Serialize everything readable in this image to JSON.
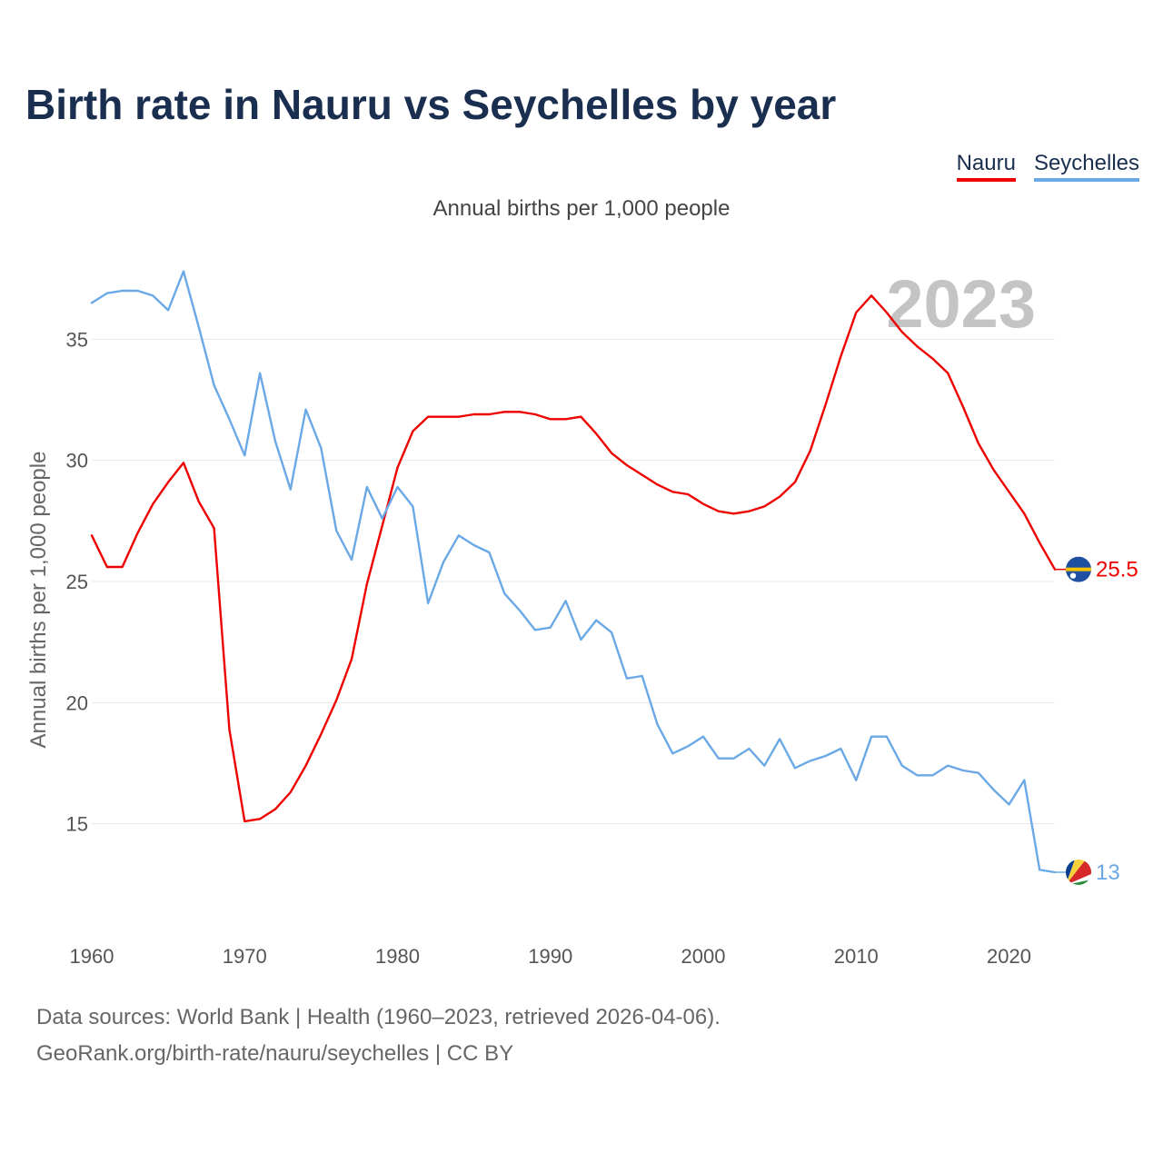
{
  "header": {
    "title": "Birth rate in Nauru vs Seychelles by year",
    "subtitle": "Annual births per 1,000 people"
  },
  "legend": [
    {
      "name": "Nauru",
      "color": "#ee0000"
    },
    {
      "name": "Seychelles",
      "color": "#6aa8e6"
    }
  ],
  "year_watermark": "2023",
  "footer": {
    "line1": "Data sources: World Bank | Health (1960–2023, retrieved 2026-04-06).",
    "line2": "GeoRank.org/birth-rate/nauru/seychelles | CC BY"
  },
  "chart_data": {
    "type": "line",
    "title": "Birth rate in Nauru vs Seychelles by year",
    "ylabel": "Annual births per 1,000 people",
    "xlabel": "",
    "xlim": [
      1960,
      2023
    ],
    "ylim": [
      11.5,
      38.5
    ],
    "xticks": [
      1960,
      1970,
      1980,
      1990,
      2000,
      2010,
      2020
    ],
    "yticks": [
      15,
      20,
      25,
      30,
      35
    ],
    "grid": true,
    "legend_position": "top-right",
    "x": [
      1960,
      1961,
      1962,
      1963,
      1964,
      1965,
      1966,
      1967,
      1968,
      1969,
      1970,
      1971,
      1972,
      1973,
      1974,
      1975,
      1976,
      1977,
      1978,
      1979,
      1980,
      1981,
      1982,
      1983,
      1984,
      1985,
      1986,
      1987,
      1988,
      1989,
      1990,
      1991,
      1992,
      1993,
      1994,
      1995,
      1996,
      1997,
      1998,
      1999,
      2000,
      2001,
      2002,
      2003,
      2004,
      2005,
      2006,
      2007,
      2008,
      2009,
      2010,
      2011,
      2012,
      2013,
      2014,
      2015,
      2016,
      2017,
      2018,
      2019,
      2020,
      2021,
      2022,
      2023
    ],
    "series": [
      {
        "name": "Nauru",
        "color": "#ee0000",
        "end_label": "25.5",
        "values": [
          26.9,
          25.6,
          25.6,
          27.0,
          28.2,
          29.1,
          29.9,
          28.3,
          27.2,
          18.9,
          15.1,
          15.2,
          15.6,
          16.3,
          17.4,
          18.7,
          20.1,
          21.8,
          24.9,
          27.3,
          29.7,
          31.2,
          31.8,
          31.8,
          31.8,
          31.9,
          31.9,
          32.0,
          32.0,
          31.9,
          31.7,
          31.7,
          31.8,
          31.1,
          30.3,
          29.8,
          29.4,
          29.0,
          28.7,
          28.6,
          28.2,
          27.9,
          27.8,
          27.9,
          28.1,
          28.5,
          29.1,
          30.4,
          32.3,
          34.3,
          36.1,
          36.8,
          36.1,
          35.3,
          34.7,
          34.2,
          33.6,
          32.2,
          30.7,
          29.6,
          28.7,
          27.8,
          26.6,
          25.5
        ]
      },
      {
        "name": "Seychelles",
        "color": "#6aa8e6",
        "end_label": "13",
        "values": [
          36.5,
          36.9,
          37.0,
          37.0,
          36.8,
          36.2,
          37.8,
          35.5,
          33.1,
          31.7,
          30.2,
          33.6,
          30.8,
          28.8,
          32.1,
          30.5,
          27.1,
          25.9,
          28.9,
          27.6,
          28.9,
          28.1,
          24.1,
          25.8,
          26.9,
          26.5,
          26.2,
          24.5,
          23.8,
          23.0,
          23.1,
          24.2,
          22.6,
          23.4,
          22.9,
          21.0,
          21.1,
          19.1,
          17.9,
          18.2,
          18.6,
          17.7,
          17.7,
          18.1,
          17.4,
          18.5,
          17.3,
          17.6,
          17.8,
          18.1,
          16.8,
          18.6,
          18.6,
          17.4,
          17.0,
          17.0,
          17.4,
          17.2,
          17.1,
          16.4,
          15.8,
          16.8,
          13.1,
          13.0
        ]
      }
    ]
  }
}
